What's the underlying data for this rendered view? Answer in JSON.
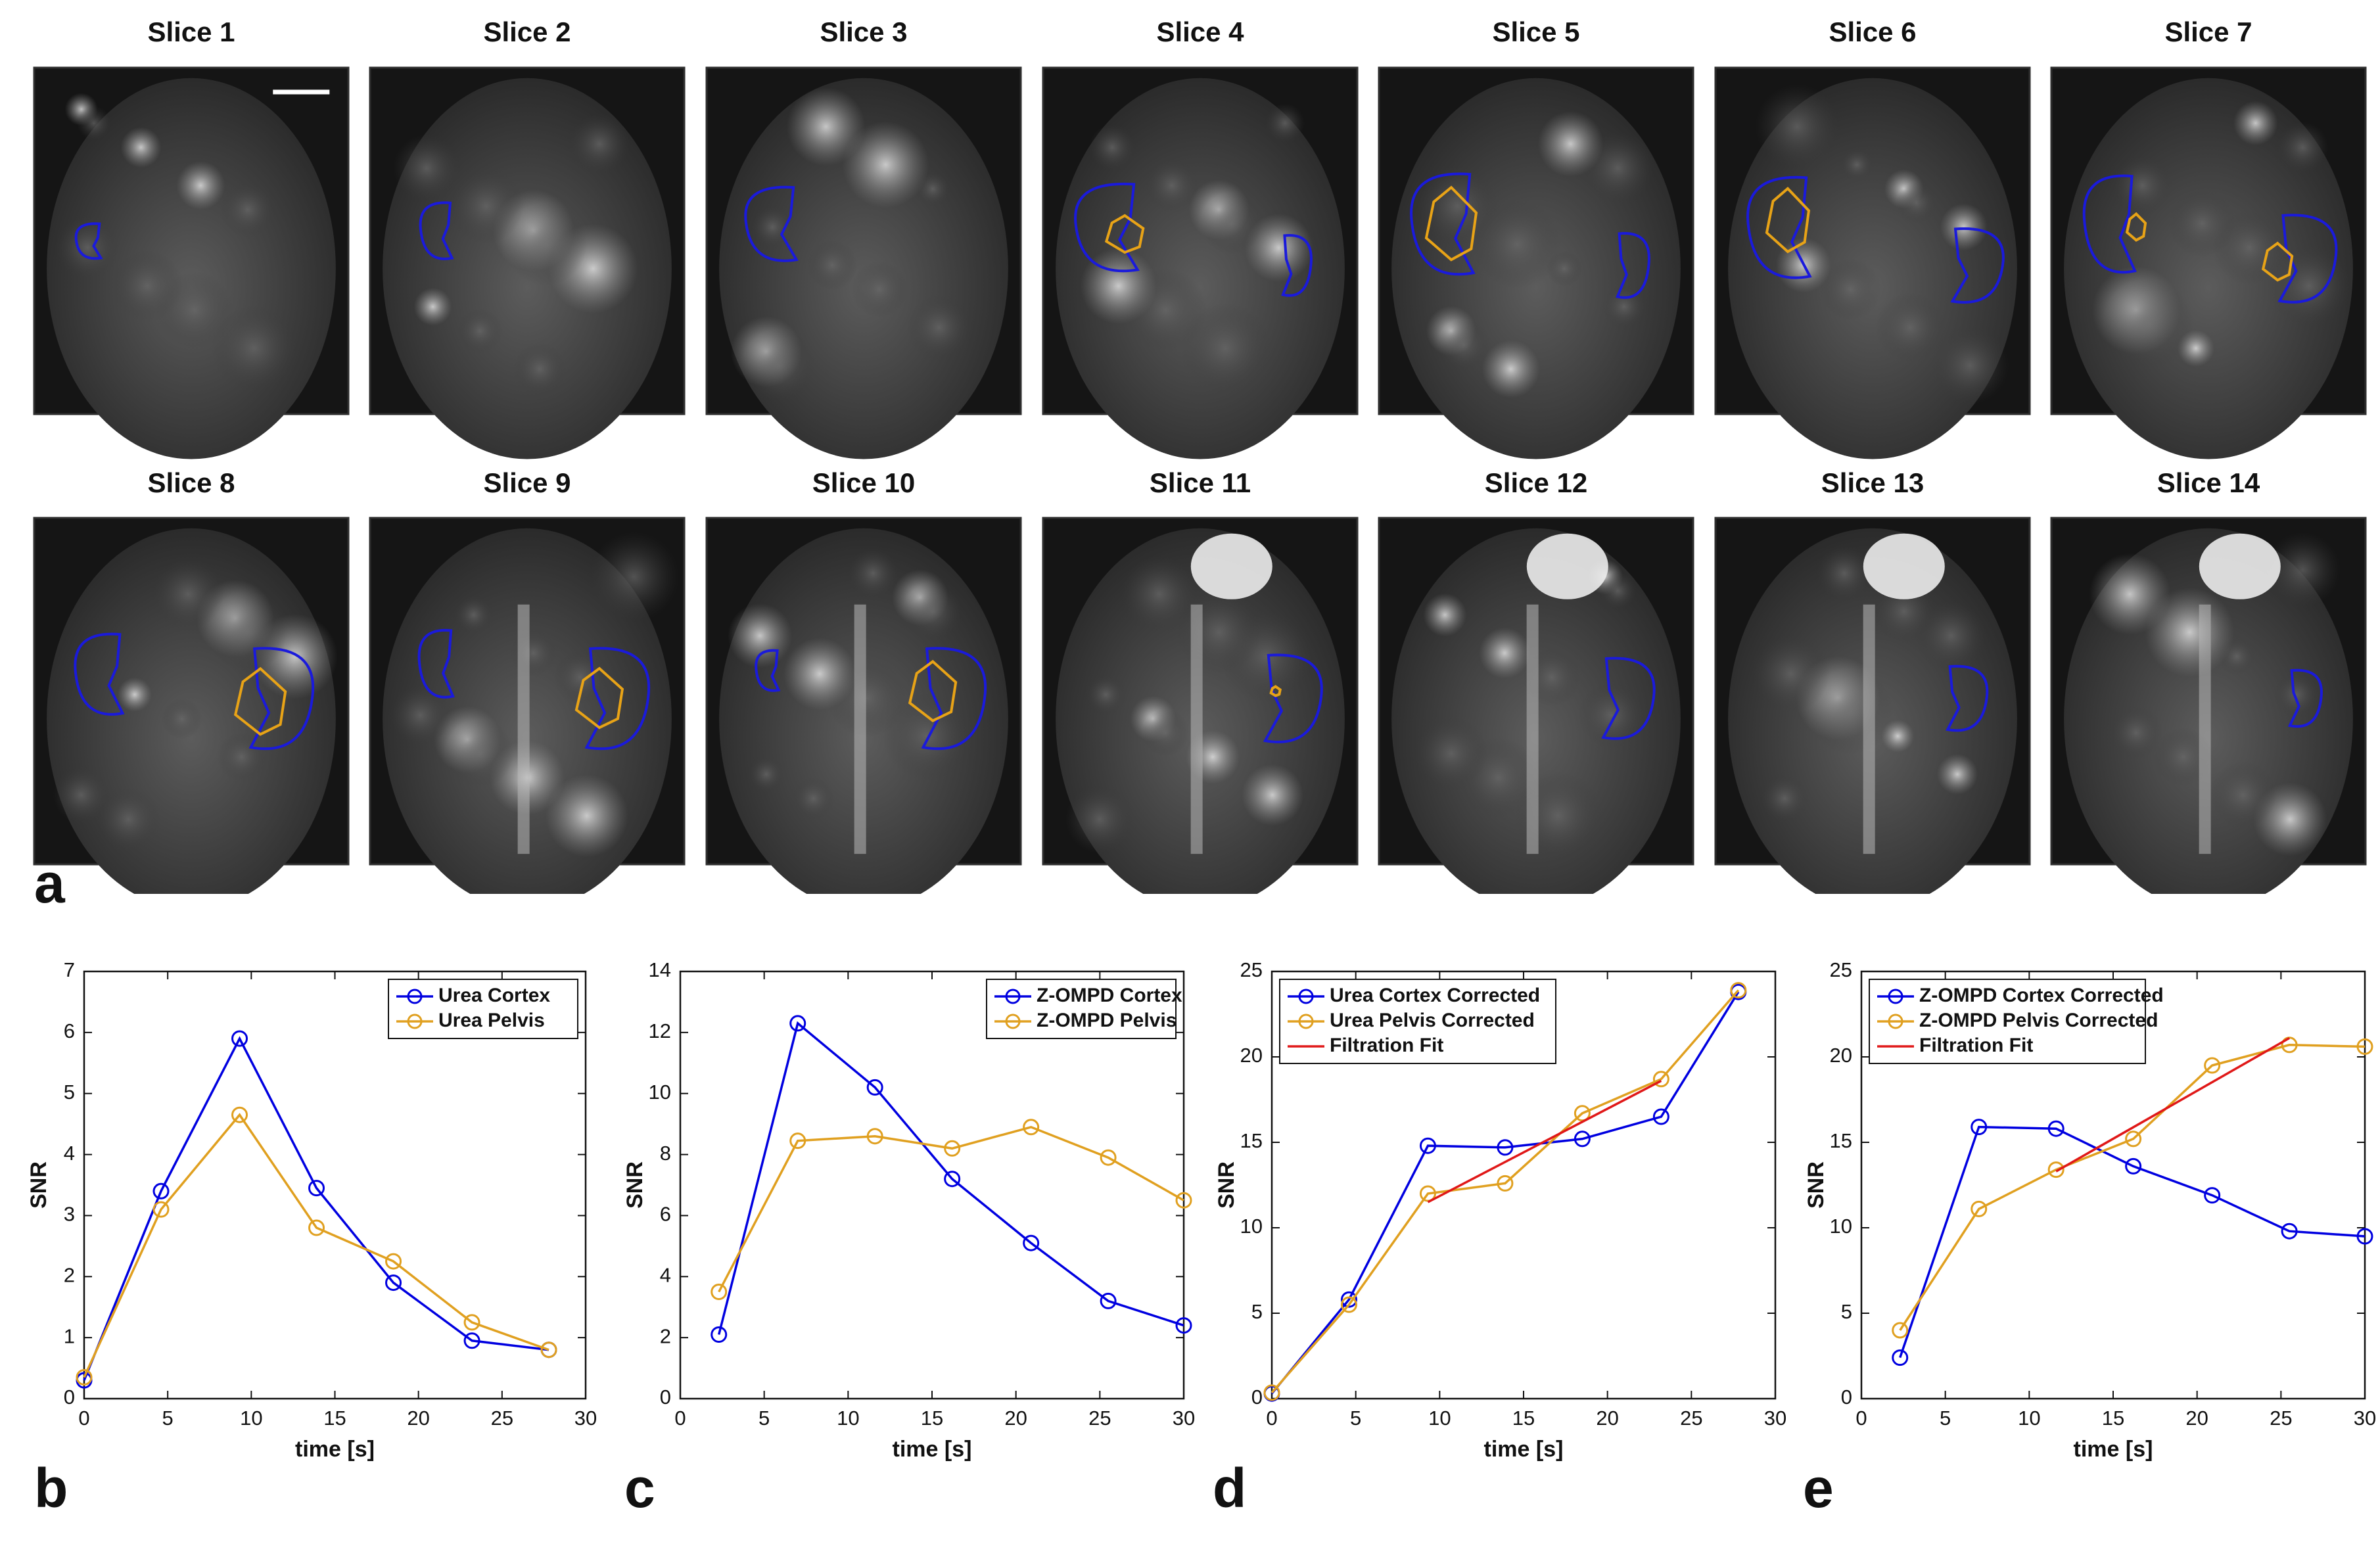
{
  "figure": {
    "panel_labels": [
      "a",
      "b",
      "c",
      "d",
      "e"
    ],
    "colors": {
      "kidney_roi": "#1a1adb",
      "pelvis_roi": "#e8a317",
      "cortex_series": "#0000e0",
      "pelvis_series": "#e0a020",
      "fit_line": "#e01818"
    }
  },
  "mri_panel": {
    "slice_titles": [
      "Slice 1",
      "Slice 2",
      "Slice 3",
      "Slice 4",
      "Slice 5",
      "Slice 6",
      "Slice 7",
      "Slice 8",
      "Slice 9",
      "Slice 10",
      "Slice 11",
      "Slice 12",
      "Slice 13",
      "Slice 14"
    ],
    "scale_bar": "scale bar shown on Slice 1"
  },
  "chart_data": [
    {
      "type": "line",
      "panel": "b",
      "title": "",
      "xlabel": "time [s]",
      "ylabel": "SNR",
      "xlim": [
        0,
        30
      ],
      "ylim": [
        0,
        7
      ],
      "xticks": [
        "0",
        "5",
        "10",
        "15",
        "20",
        "25",
        "30"
      ],
      "yticks": [
        "0",
        "1",
        "2",
        "3",
        "4",
        "5",
        "6",
        "7"
      ],
      "legend_position": "top-right",
      "series": [
        {
          "name": "Urea Cortex",
          "color": "#0000e0",
          "marker": "circle",
          "x": [
            0,
            4.6,
            9.3,
            13.9,
            18.5,
            23.2,
            27.8
          ],
          "values": [
            0.3,
            3.4,
            5.9,
            3.45,
            1.9,
            0.95,
            0.8
          ]
        },
        {
          "name": "Urea Pelvis",
          "color": "#e0a020",
          "marker": "circle",
          "x": [
            0,
            4.6,
            9.3,
            13.9,
            18.5,
            23.2,
            27.8
          ],
          "values": [
            0.35,
            3.1,
            4.65,
            2.8,
            2.25,
            1.25,
            0.8
          ]
        }
      ]
    },
    {
      "type": "line",
      "panel": "c",
      "title": "",
      "xlabel": "time [s]",
      "ylabel": "SNR",
      "xlim": [
        0,
        30
      ],
      "ylim": [
        0,
        14
      ],
      "xticks": [
        "0",
        "5",
        "10",
        "15",
        "20",
        "25",
        "30"
      ],
      "yticks": [
        "0",
        "2",
        "4",
        "6",
        "8",
        "10",
        "12",
        "14"
      ],
      "legend_position": "top-right",
      "series": [
        {
          "name": "Z-OMPD Cortex",
          "color": "#0000e0",
          "marker": "circle",
          "x": [
            2.3,
            7.0,
            11.6,
            16.2,
            20.9,
            25.5,
            30.0
          ],
          "values": [
            2.1,
            12.3,
            10.2,
            7.2,
            5.1,
            3.2,
            2.4
          ]
        },
        {
          "name": "Z-OMPD Pelvis",
          "color": "#e0a020",
          "marker": "circle",
          "x": [
            2.3,
            7.0,
            11.6,
            16.2,
            20.9,
            25.5,
            30.0
          ],
          "values": [
            3.5,
            8.45,
            8.6,
            8.2,
            8.9,
            7.9,
            6.5
          ]
        }
      ]
    },
    {
      "type": "line",
      "panel": "d",
      "title": "",
      "xlabel": "time [s]",
      "ylabel": "SNR",
      "xlim": [
        0,
        30
      ],
      "ylim": [
        0,
        25
      ],
      "xticks": [
        "0",
        "5",
        "10",
        "15",
        "20",
        "25",
        "30"
      ],
      "yticks": [
        "0",
        "5",
        "10",
        "15",
        "20",
        "25"
      ],
      "legend_position": "top-left",
      "series": [
        {
          "name": "Urea Cortex Corrected",
          "color": "#0000e0",
          "marker": "circle",
          "x": [
            0,
            4.6,
            9.3,
            13.9,
            18.5,
            23.2,
            27.8
          ],
          "values": [
            0.3,
            5.8,
            14.8,
            14.7,
            15.2,
            16.5,
            23.8
          ]
        },
        {
          "name": "Urea Pelvis Corrected",
          "color": "#e0a020",
          "marker": "circle",
          "x": [
            0,
            4.6,
            9.3,
            13.9,
            18.5,
            23.2,
            27.8
          ],
          "values": [
            0.35,
            5.5,
            12.0,
            12.6,
            16.7,
            18.7,
            23.9
          ]
        },
        {
          "name": "Filtration Fit",
          "color": "#e01818",
          "marker": "none",
          "x": [
            9.3,
            23.2
          ],
          "values": [
            11.5,
            18.6
          ]
        }
      ]
    },
    {
      "type": "line",
      "panel": "e",
      "title": "",
      "xlabel": "time [s]",
      "ylabel": "SNR",
      "xlim": [
        0,
        30
      ],
      "ylim": [
        0,
        25
      ],
      "xticks": [
        "0",
        "5",
        "10",
        "15",
        "20",
        "25",
        "30"
      ],
      "yticks": [
        "0",
        "5",
        "10",
        "15",
        "20",
        "25"
      ],
      "legend_position": "top-left",
      "series": [
        {
          "name": "Z-OMPD Cortex Corrected",
          "color": "#0000e0",
          "marker": "circle",
          "x": [
            2.3,
            7.0,
            11.6,
            16.2,
            20.9,
            25.5,
            30.0
          ],
          "values": [
            2.4,
            15.9,
            15.8,
            13.6,
            11.9,
            9.8,
            9.5
          ]
        },
        {
          "name": "Z-OMPD Pelvis Corrected",
          "color": "#e0a020",
          "marker": "circle",
          "x": [
            2.3,
            7.0,
            11.6,
            16.2,
            20.9,
            25.5,
            30.0
          ],
          "values": [
            4.0,
            11.1,
            13.4,
            15.2,
            19.5,
            20.7,
            20.6
          ]
        },
        {
          "name": "Filtration Fit",
          "color": "#e01818",
          "marker": "none",
          "x": [
            11.6,
            25.5
          ],
          "values": [
            13.3,
            21.1
          ]
        }
      ]
    }
  ]
}
